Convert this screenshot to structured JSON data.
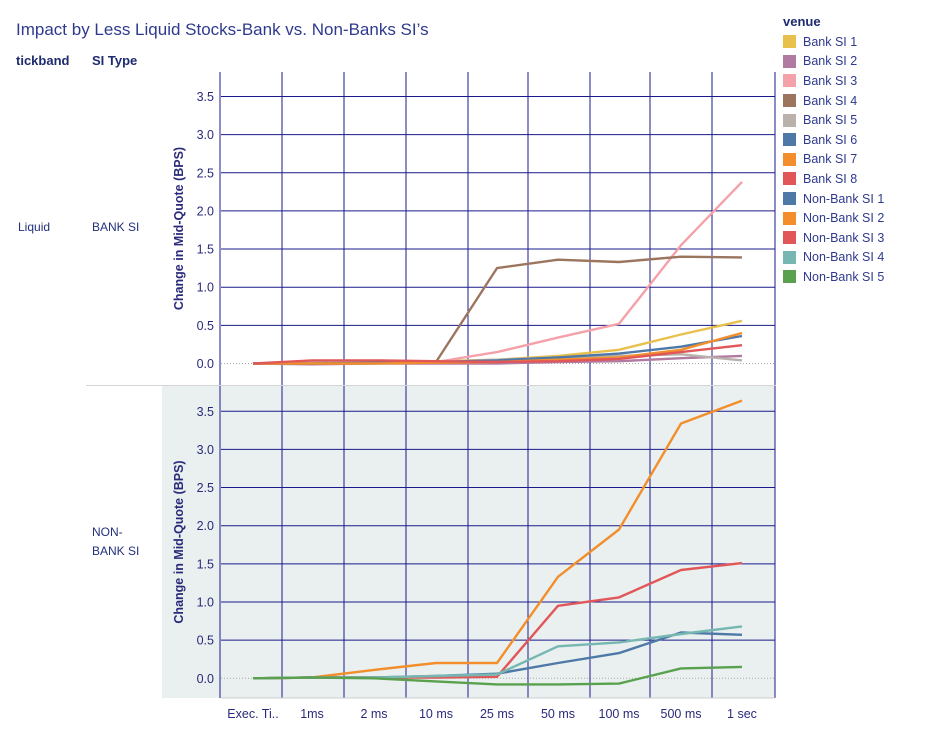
{
  "title": "Impact by Less Liquid Stocks-Bank vs. Non-Banks SI’s",
  "headers": {
    "tickband": "tickband",
    "si_type": "SI Type"
  },
  "rows": [
    {
      "tickband": "Liquid",
      "si_type": "BANK SI"
    },
    {
      "tickband": "",
      "si_type": "NON-\nBANK SI"
    }
  ],
  "legend": {
    "title": "venue",
    "items": [
      {
        "label": "Bank SI 1",
        "color": "#E8C14C"
      },
      {
        "label": "Bank SI 2",
        "color": "#B07AA1"
      },
      {
        "label": "Bank SI 3",
        "color": "#F4A1A9"
      },
      {
        "label": "Bank SI 4",
        "color": "#9C755F"
      },
      {
        "label": "Bank SI 5",
        "color": "#BAB0AC"
      },
      {
        "label": "Bank SI 6",
        "color": "#4E79A7"
      },
      {
        "label": "Bank SI 7",
        "color": "#F28E2B"
      },
      {
        "label": "Bank SI 8",
        "color": "#E15759"
      },
      {
        "label": "Non-Bank SI 1",
        "color": "#4E79A7"
      },
      {
        "label": "Non-Bank SI 2",
        "color": "#F28E2B"
      },
      {
        "label": "Non-Bank SI 3",
        "color": "#E15759"
      },
      {
        "label": "Non-Bank SI 4",
        "color": "#76B7B2"
      },
      {
        "label": "Non-Bank SI 5",
        "color": "#59A14F"
      }
    ]
  },
  "colors": {
    "grid_line": "#1a1a8c",
    "panel_background_nonbank": "#e9f0ef",
    "zero_line": "#aaaaaa"
  },
  "chart_data": {
    "type": "line",
    "x_categories": [
      "Exec. Ti..",
      "1ms",
      "2 ms",
      "10 ms",
      "25 ms",
      "50 ms",
      "100 ms",
      "500 ms",
      "1 sec"
    ],
    "ylabel": "Change in Mid-Quote (BPS)",
    "y_ticks": [
      "3.5",
      "3.0",
      "2.5",
      "2.0",
      "1.5",
      "1.0",
      "0.5",
      "0.0"
    ],
    "ylim": [
      -0.2,
      3.9
    ],
    "grid": true,
    "legend_position": "right",
    "panels": [
      {
        "name": "BANK SI",
        "series": [
          {
            "name": "Bank SI 1",
            "color": "#E8C14C",
            "values": [
              0.0,
              0.02,
              0.02,
              0.03,
              0.05,
              0.1,
              0.18,
              0.38,
              0.56
            ]
          },
          {
            "name": "Bank SI 2",
            "color": "#B07AA1",
            "values": [
              0.0,
              -0.01,
              0.0,
              0.0,
              0.0,
              0.02,
              0.03,
              0.07,
              0.1
            ]
          },
          {
            "name": "Bank SI 3",
            "color": "#F4A1A9",
            "values": [
              0.0,
              0.0,
              0.01,
              0.02,
              0.15,
              0.34,
              0.52,
              1.55,
              2.38
            ]
          },
          {
            "name": "Bank SI 4",
            "color": "#9C755F",
            "values": [
              0.0,
              0.0,
              0.01,
              0.02,
              1.25,
              1.36,
              1.33,
              1.4,
              1.39
            ]
          },
          {
            "name": "Bank SI 5",
            "color": "#BAB0AC",
            "values": [
              0.0,
              0.01,
              0.01,
              0.02,
              0.05,
              0.08,
              0.1,
              0.12,
              0.04
            ]
          },
          {
            "name": "Bank SI 6",
            "color": "#4E79A7",
            "values": [
              0.0,
              0.0,
              0.01,
              0.02,
              0.04,
              0.08,
              0.13,
              0.22,
              0.36
            ]
          },
          {
            "name": "Bank SI 7",
            "color": "#F28E2B",
            "values": [
              0.0,
              0.0,
              0.0,
              0.01,
              0.02,
              0.05,
              0.08,
              0.18,
              0.4
            ]
          },
          {
            "name": "Bank SI 8",
            "color": "#E15759",
            "values": [
              0.0,
              0.04,
              0.04,
              0.03,
              0.02,
              0.03,
              0.06,
              0.15,
              0.24
            ]
          }
        ]
      },
      {
        "name": "NON-BANK SI",
        "series": [
          {
            "name": "Non-Bank SI 1",
            "color": "#4E79A7",
            "values": [
              0.0,
              0.01,
              0.01,
              0.03,
              0.06,
              0.2,
              0.33,
              0.6,
              0.57
            ]
          },
          {
            "name": "Non-Bank SI 2",
            "color": "#F28E2B",
            "values": [
              0.0,
              0.01,
              0.11,
              0.2,
              0.2,
              1.33,
              1.95,
              3.34,
              3.64
            ]
          },
          {
            "name": "Non-Bank SI 3",
            "color": "#E15759",
            "values": [
              0.0,
              0.01,
              0.01,
              0.01,
              0.02,
              0.95,
              1.06,
              1.42,
              1.51
            ]
          },
          {
            "name": "Non-Bank SI 4",
            "color": "#76B7B2",
            "values": [
              0.0,
              0.01,
              0.01,
              0.03,
              0.05,
              0.42,
              0.47,
              0.58,
              0.68
            ]
          },
          {
            "name": "Non-Bank SI 5",
            "color": "#59A14F",
            "values": [
              0.0,
              0.01,
              0.0,
              -0.04,
              -0.08,
              -0.08,
              -0.07,
              0.13,
              0.15
            ]
          }
        ]
      }
    ]
  }
}
